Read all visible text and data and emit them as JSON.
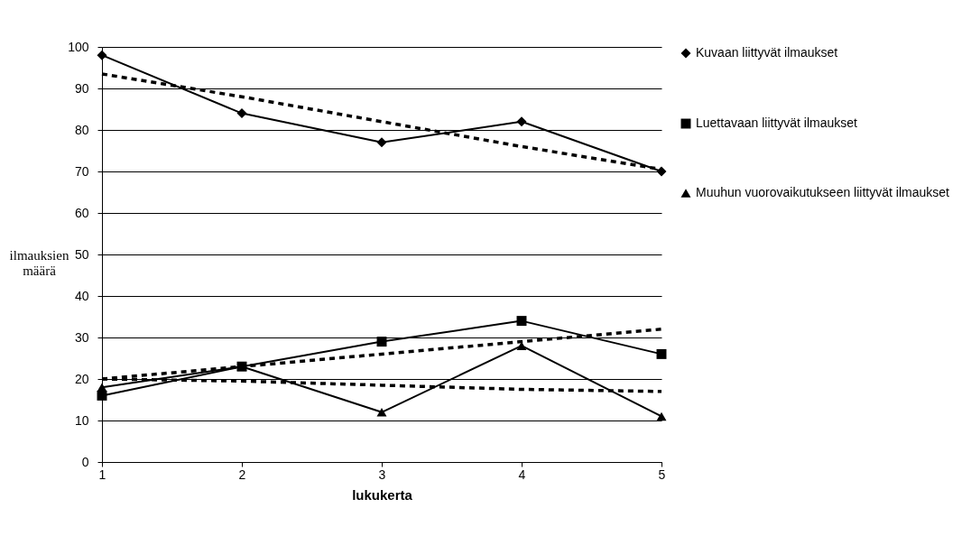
{
  "chart_data": {
    "type": "line",
    "xlabel": "lukukerta",
    "ylabel": "ilmauksien määrä",
    "x": [
      1,
      2,
      3,
      4,
      5
    ],
    "xlim": [
      1,
      5
    ],
    "xticks": [
      1,
      2,
      3,
      4,
      5
    ],
    "ylim": [
      0,
      100
    ],
    "yticks": [
      0,
      10,
      20,
      30,
      40,
      50,
      60,
      70,
      80,
      90,
      100
    ],
    "grid": "y",
    "legend": "right",
    "line_style": "solid",
    "series": [
      {
        "name": "Kuvaan liittyvät ilmaukset",
        "color": "#000000",
        "marker": "diamond",
        "values": [
          98,
          84,
          77,
          82,
          70
        ]
      },
      {
        "name": "Luettavaan liittyvät ilmaukset",
        "color": "#000000",
        "marker": "square",
        "values": [
          16,
          23,
          29,
          34,
          26
        ]
      },
      {
        "name": "Muuhun vuorovaikutukseen liittyvät ilmaukset",
        "color": "#000000",
        "marker": "triangle",
        "values": [
          18,
          23,
          12,
          28,
          11
        ]
      },
      {
        "type": "line",
        "color": "#000000",
        "marker": "none",
        "line_style": "dashed",
        "values": [
          93.5,
          88,
          82,
          76,
          70.5
        ]
      },
      {
        "type": "line",
        "color": "#000000",
        "marker": "none",
        "line_style": "dashed",
        "values": [
          20,
          23,
          26,
          29,
          32
        ]
      },
      {
        "type": "line",
        "color": "#000000",
        "marker": "none",
        "line_style": "dashed",
        "values": [
          20,
          19.5,
          18.5,
          17.5,
          17
        ]
      }
    ]
  }
}
